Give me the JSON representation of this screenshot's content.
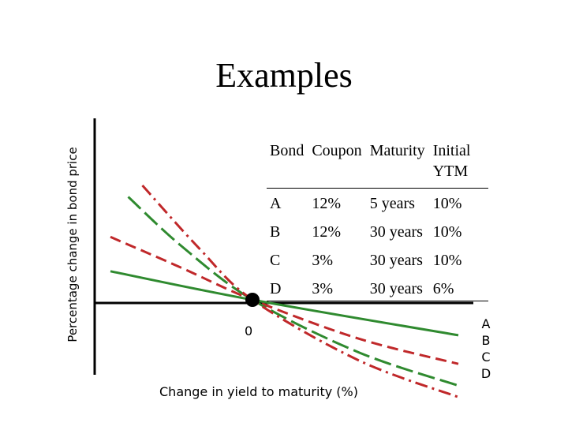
{
  "chart_data": {
    "type": "line",
    "title": "Examples",
    "ylabel": "Percentage change in bond price",
    "xlabel": "Change in yield to maturity (%)",
    "origin_label": "0",
    "series": [
      {
        "name": "A",
        "color": "#2f8a2f",
        "dash": "solid",
        "x": [
          -4,
          0,
          5.8
        ],
        "y": [
          2.5,
          0,
          -3.1
        ]
      },
      {
        "name": "B",
        "color": "#c0282a",
        "dash": "dashed",
        "x": [
          -4,
          -2,
          0,
          3,
          5.8
        ],
        "y": [
          5.5,
          2.8,
          0,
          -3.4,
          -5.6
        ]
      },
      {
        "name": "C",
        "color": "#2f8a2f",
        "dash": "long-dash",
        "x": [
          -3.5,
          -2,
          0,
          3,
          5.8
        ],
        "y": [
          9.0,
          4.7,
          0,
          -4.6,
          -7.5
        ]
      },
      {
        "name": "D",
        "color": "#c0282a",
        "dash": "dash-dot",
        "x": [
          -3.1,
          -1.5,
          0,
          3,
          5.8
        ],
        "y": [
          10.0,
          4.5,
          0,
          -5.3,
          -8.5
        ]
      }
    ],
    "origin_point": {
      "x": 0,
      "y": 0
    }
  },
  "table": {
    "headers": [
      "Bond",
      "Coupon",
      "Maturity",
      "Initial YTM"
    ],
    "rows": [
      [
        "A",
        "12%",
        "5 years",
        "10%"
      ],
      [
        "B",
        "12%",
        "30 years",
        "10%"
      ],
      [
        "C",
        "3%",
        "30 years",
        "10%"
      ],
      [
        "D",
        "3%",
        "30 years",
        "6%"
      ]
    ]
  },
  "legend": [
    "A",
    "B",
    "C",
    "D"
  ]
}
